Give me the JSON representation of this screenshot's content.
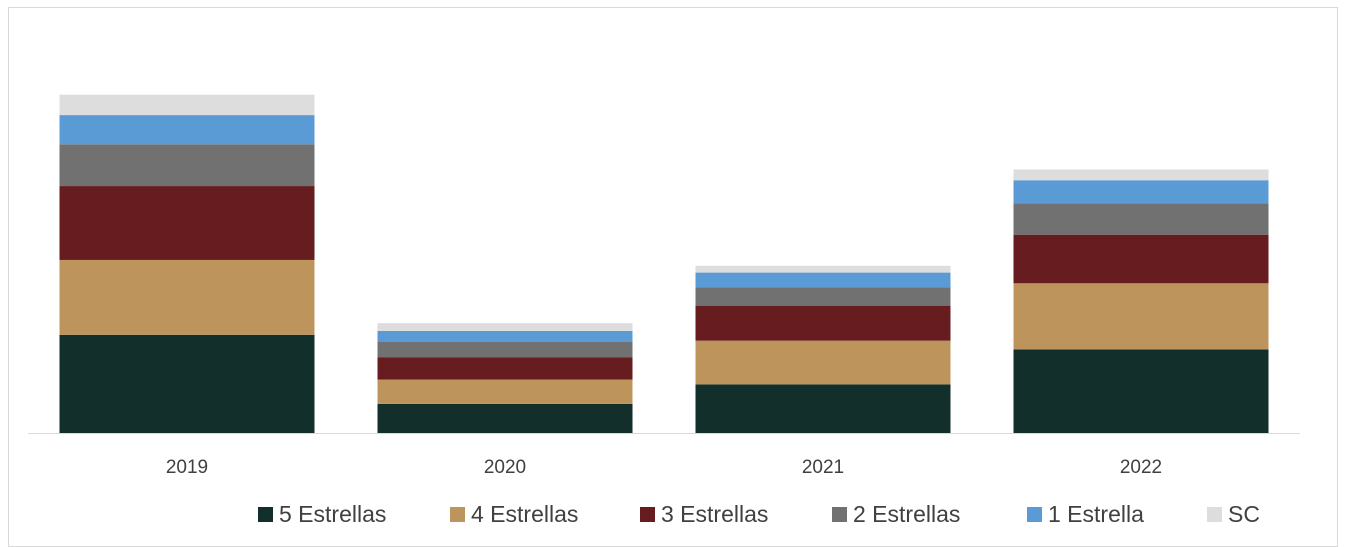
{
  "chart_data": {
    "type": "bar",
    "stacked": true,
    "categories": [
      "2019",
      "2020",
      "2021",
      "2022"
    ],
    "series": [
      {
        "name": "5 Estrellas",
        "color": "#122f2b",
        "values": [
          101,
          30,
          50,
          86
        ]
      },
      {
        "name": "4 Estrellas",
        "color": "#bd955c",
        "values": [
          77,
          25,
          45,
          68
        ]
      },
      {
        "name": "3 Estrellas",
        "color": "#671c20",
        "values": [
          76,
          23,
          36,
          50
        ]
      },
      {
        "name": "2 Estrellas",
        "color": "#717171",
        "values": [
          43,
          16,
          19,
          32
        ]
      },
      {
        "name": "1 Estrella",
        "color": "#5b9bd5",
        "values": [
          30,
          11,
          15,
          24
        ]
      },
      {
        "name": "SC",
        "color": "#dddddd",
        "values": [
          21,
          8,
          7,
          11
        ]
      }
    ],
    "title": "",
    "xlabel": "",
    "ylabel": "",
    "ylim": [
      0,
      360
    ],
    "grid": false,
    "legend_position": "bottom-right"
  }
}
